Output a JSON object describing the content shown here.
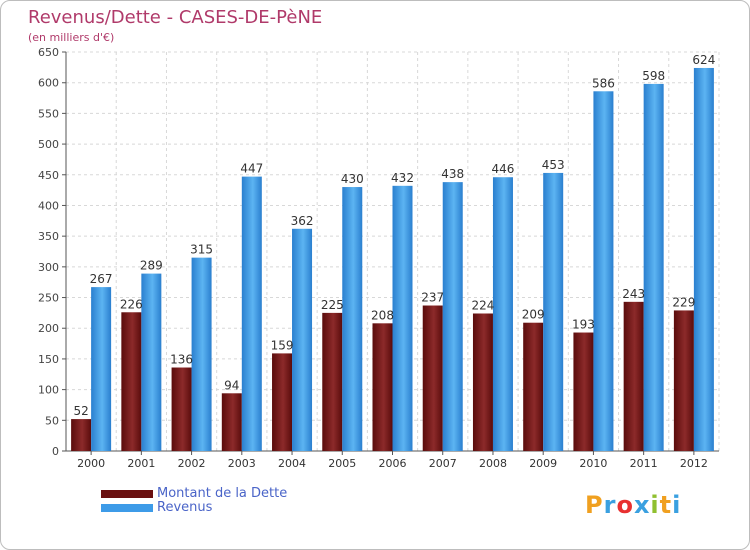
{
  "chart_data": {
    "type": "bar",
    "title": "Revenus/Dette - CASES-DE-PèNE",
    "subtitle": "(en milliers d'€)",
    "categories": [
      "2000",
      "2001",
      "2002",
      "2003",
      "2004",
      "2005",
      "2006",
      "2007",
      "2008",
      "2009",
      "2010",
      "2011",
      "2012"
    ],
    "series": [
      {
        "name": "Montant de la Dette",
        "color": "#7a1a1a",
        "values": [
          52,
          226,
          136,
          94,
          159,
          225,
          208,
          237,
          224,
          209,
          193,
          243,
          229
        ]
      },
      {
        "name": "Revenus",
        "color": "#3d9be8",
        "values": [
          267,
          289,
          315,
          447,
          362,
          430,
          432,
          438,
          446,
          453,
          586,
          598,
          624
        ]
      }
    ],
    "yticks": [
      0,
      50,
      100,
      150,
      200,
      250,
      300,
      350,
      400,
      450,
      500,
      550,
      600,
      650
    ],
    "ylim": [
      0,
      650
    ],
    "grid": true,
    "legend_placement": "bottom-left"
  },
  "logo": {
    "letters": [
      "P",
      "r",
      "o",
      "x",
      "i",
      "t",
      "i"
    ],
    "colors": [
      "#f0a020",
      "#3aa0e0",
      "#e83030",
      "#3aa0e0",
      "#90c030",
      "#f0a020",
      "#3aa0e0"
    ]
  }
}
